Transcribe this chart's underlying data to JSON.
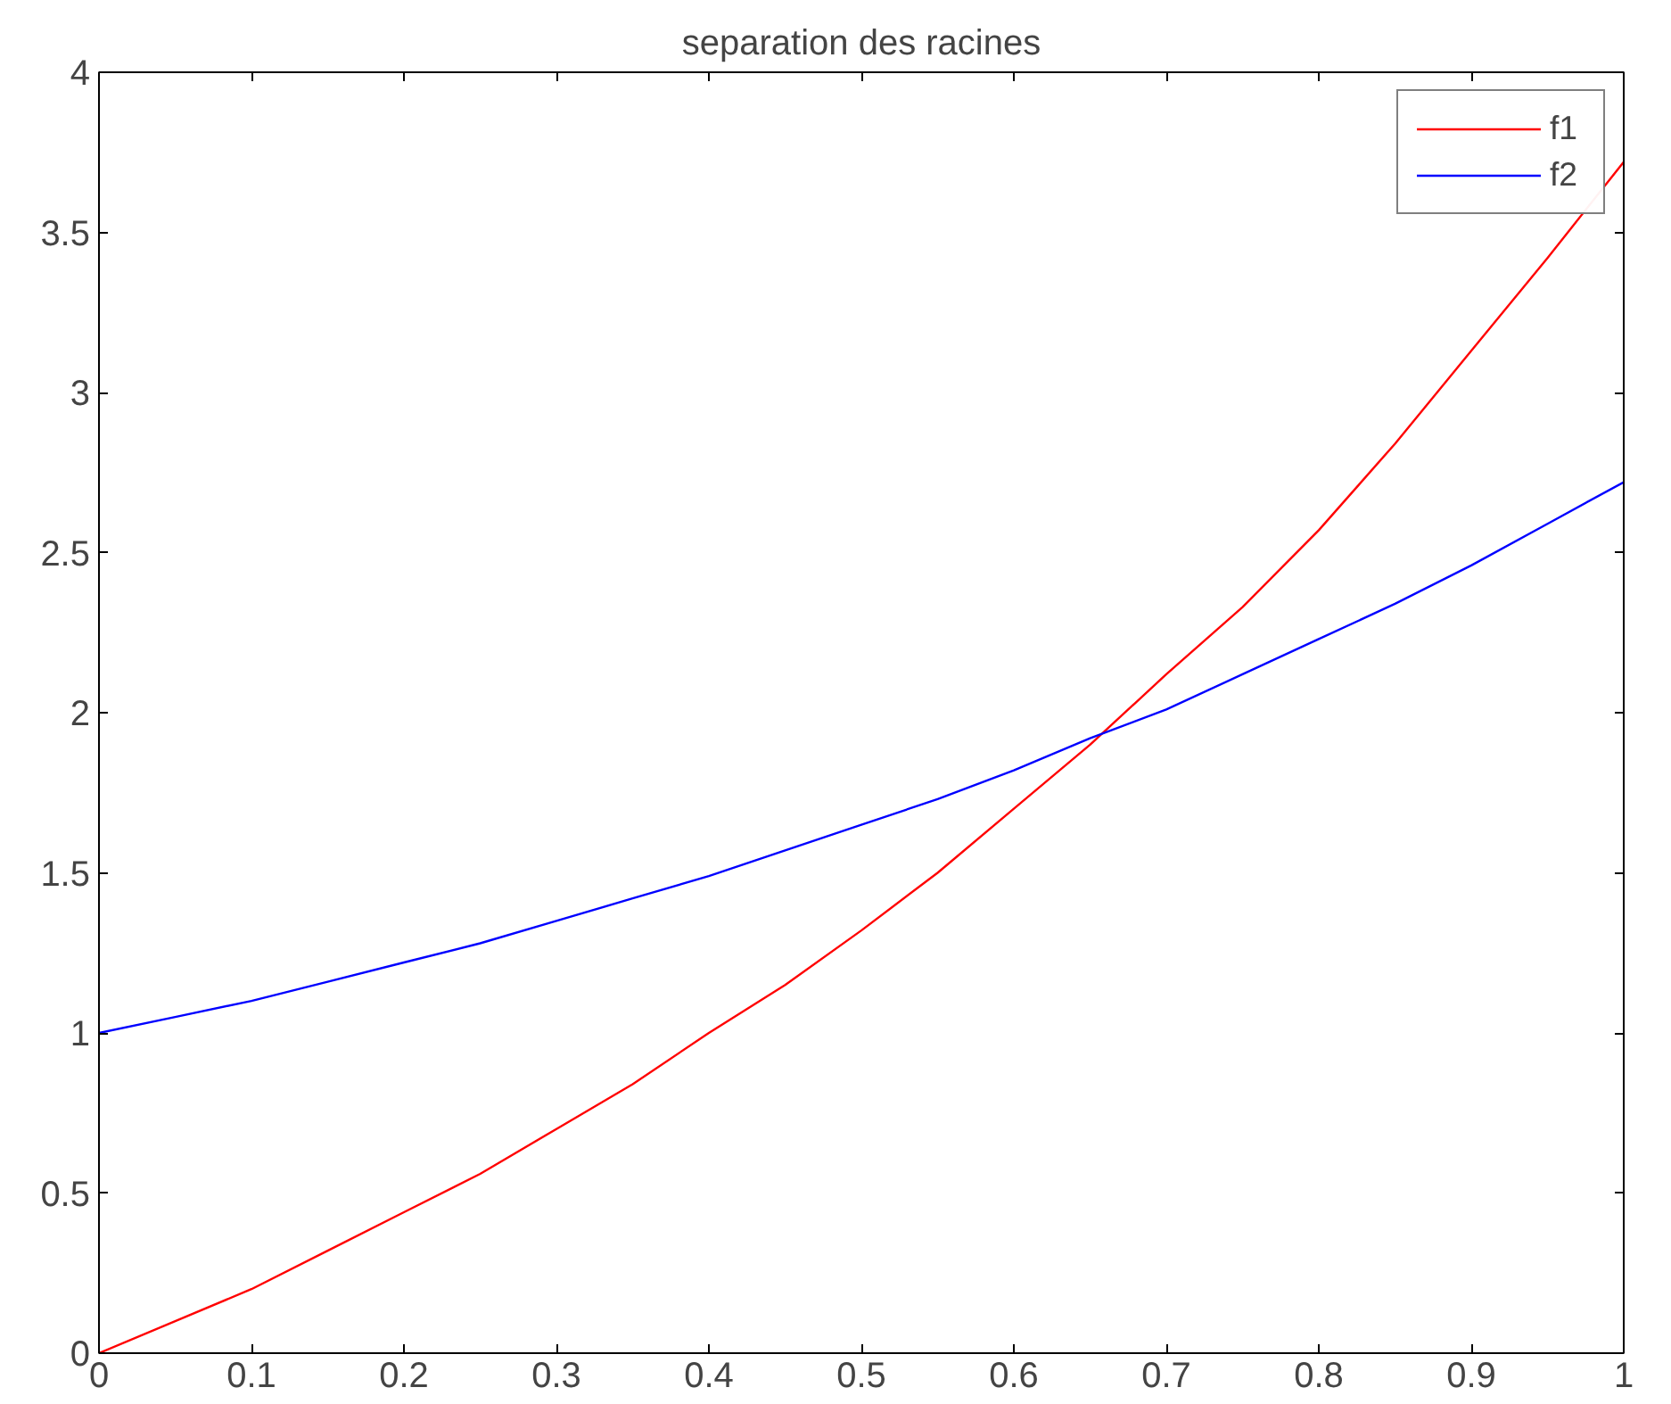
{
  "chart_data": {
    "type": "line",
    "title": "separation des racines",
    "x": [
      0,
      0.05,
      0.1,
      0.15,
      0.2,
      0.25,
      0.3,
      0.35,
      0.4,
      0.45,
      0.5,
      0.55,
      0.6,
      0.65,
      0.7,
      0.75,
      0.8,
      0.85,
      0.9,
      0.95,
      1.0
    ],
    "series": [
      {
        "name": "f1",
        "color": "#ff0000",
        "values": [
          0,
          0.1,
          0.2,
          0.32,
          0.44,
          0.56,
          0.7,
          0.84,
          1.0,
          1.15,
          1.32,
          1.5,
          1.7,
          1.9,
          2.12,
          2.33,
          2.57,
          2.84,
          3.13,
          3.42,
          3.72
        ]
      },
      {
        "name": "f2",
        "color": "#0000ff",
        "values": [
          1,
          1.05,
          1.1,
          1.16,
          1.22,
          1.28,
          1.35,
          1.42,
          1.49,
          1.57,
          1.65,
          1.73,
          1.82,
          1.92,
          2.01,
          2.12,
          2.23,
          2.34,
          2.46,
          2.59,
          2.72
        ]
      }
    ],
    "xlim": [
      0,
      1
    ],
    "ylim": [
      0,
      4
    ],
    "xticks": [
      0,
      0.1,
      0.2,
      0.3,
      0.4,
      0.5,
      0.6,
      0.7,
      0.8,
      0.9,
      1
    ],
    "yticks": [
      0,
      0.5,
      1,
      1.5,
      2,
      2.5,
      3,
      3.5,
      4
    ],
    "legend": "top right",
    "grid": false,
    "line_style": "solid"
  }
}
